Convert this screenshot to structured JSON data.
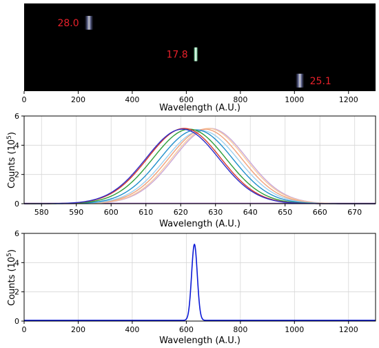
{
  "chart_data": [
    {
      "type": "image",
      "xlabel": "Wavelength (A.U.)",
      "xlim": [
        0,
        1300
      ],
      "x_ticks": [
        0,
        200,
        400,
        600,
        800,
        1000,
        1200
      ],
      "background": "#000000",
      "label_color": "#e8202a",
      "spots": [
        {
          "x": 240,
          "y_frac": 0.22,
          "label": "28.0",
          "label_side": "left",
          "intensity": 0.55
        },
        {
          "x": 635,
          "y_frac": 0.58,
          "label": "17.8",
          "label_side": "left",
          "intensity": 1.0
        },
        {
          "x": 1020,
          "y_frac": 0.88,
          "label": "25.1",
          "label_side": "right",
          "intensity": 0.65
        }
      ]
    },
    {
      "type": "line",
      "xlabel": "Wavelength (A.U.)",
      "ylabel": "Counts (10",
      "ylabel_sup": "5",
      "ylabel_close": ")",
      "xlim": [
        575,
        676
      ],
      "ylim": [
        0,
        6
      ],
      "x_ticks": [
        580,
        590,
        600,
        610,
        620,
        630,
        640,
        650,
        660,
        670
      ],
      "y_ticks": [
        0,
        2,
        4,
        6
      ],
      "grid": true,
      "baseline_color": "#7a3ea0",
      "series": [
        {
          "color": "#2d2dc8",
          "center": 620.5,
          "sigma": 10.5,
          "peak": 5.1
        },
        {
          "color": "#d63a2f",
          "center": 621.0,
          "sigma": 10.5,
          "peak": 5.15
        },
        {
          "color": "#2e9e3a",
          "center": 622.5,
          "sigma": 10.5,
          "peak": 5.1
        },
        {
          "color": "#1f8fcc",
          "center": 624.5,
          "sigma": 10.5,
          "peak": 5.05
        },
        {
          "color": "#9fd0ee",
          "center": 626.0,
          "sigma": 10.5,
          "peak": 5.0
        },
        {
          "color": "#f2a27a",
          "center": 627.0,
          "sigma": 10.5,
          "peak": 5.1
        },
        {
          "color": "#f6c9a0",
          "center": 628.0,
          "sigma": 10.5,
          "peak": 5.15
        },
        {
          "color": "#c9a6d6",
          "center": 628.5,
          "sigma": 10.5,
          "peak": 5.15
        }
      ]
    },
    {
      "type": "line",
      "xlabel": "Wavelength (A.U.)",
      "ylabel": "Counts (10",
      "ylabel_sup": "5",
      "ylabel_close": ")",
      "xlim": [
        0,
        1300
      ],
      "ylim": [
        0,
        6
      ],
      "x_ticks": [
        0,
        200,
        400,
        600,
        800,
        1000,
        1200
      ],
      "y_ticks": [
        0,
        2,
        4,
        6
      ],
      "grid": true,
      "series": [
        {
          "color": "#0a18d6",
          "center": 630,
          "sigma": 10.5,
          "peak": 5.2,
          "baseline": 0.05
        }
      ]
    }
  ]
}
